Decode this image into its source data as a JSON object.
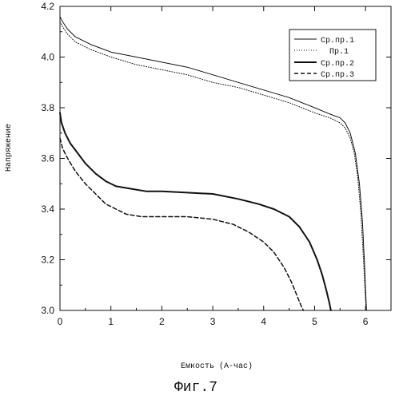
{
  "chart_data": {
    "type": "line",
    "title": "",
    "xlabel": "Емкость (А-час)",
    "ylabel": "Напряжение",
    "caption": "Фиг.7",
    "xlim": [
      0,
      6.5
    ],
    "ylim": [
      3.0,
      4.2
    ],
    "xticks": [
      0,
      1,
      2,
      3,
      4,
      5,
      6
    ],
    "yticks": [
      3.0,
      3.2,
      3.4,
      3.6,
      3.8,
      4.0,
      4.2
    ],
    "xtick_labels": [
      "0",
      "1",
      "2",
      "3",
      "4",
      "5",
      "6"
    ],
    "ytick_labels": [
      "3.0",
      "3.2",
      "3.4",
      "3.6",
      "3.8",
      "4.0",
      "4.2"
    ],
    "grid": false,
    "legend_position": "top-right",
    "series": [
      {
        "name": "Ср.пр.1",
        "style": "solid-thin",
        "color": "#111111",
        "x": [
          0.0,
          0.05,
          0.15,
          0.3,
          0.6,
          1.0,
          1.5,
          2.0,
          2.5,
          3.0,
          3.5,
          4.0,
          4.5,
          5.0,
          5.3,
          5.5,
          5.6,
          5.7,
          5.8,
          5.88,
          5.94,
          5.98,
          6.0,
          6.02
        ],
        "y": [
          4.16,
          4.14,
          4.11,
          4.08,
          4.05,
          4.02,
          4.0,
          3.98,
          3.96,
          3.93,
          3.9,
          3.87,
          3.84,
          3.8,
          3.775,
          3.76,
          3.74,
          3.7,
          3.62,
          3.5,
          3.35,
          3.18,
          3.08,
          3.0
        ]
      },
      {
        "name": "Пр.1",
        "style": "dotted",
        "color": "#111111",
        "x": [
          0.0,
          0.05,
          0.15,
          0.3,
          0.6,
          1.0,
          1.5,
          2.0,
          2.5,
          3.0,
          3.5,
          4.0,
          4.5,
          5.0,
          5.3,
          5.5,
          5.6,
          5.7,
          5.78,
          5.85,
          5.91,
          5.96,
          5.99,
          6.01
        ],
        "y": [
          4.14,
          4.12,
          4.09,
          4.06,
          4.03,
          4.0,
          3.97,
          3.95,
          3.93,
          3.9,
          3.88,
          3.85,
          3.82,
          3.78,
          3.76,
          3.74,
          3.72,
          3.68,
          3.62,
          3.52,
          3.38,
          3.2,
          3.08,
          3.0
        ]
      },
      {
        "name": "Ср.пр.2",
        "style": "solid-thick",
        "color": "#111111",
        "x": [
          0.0,
          0.03,
          0.1,
          0.2,
          0.35,
          0.5,
          0.7,
          0.9,
          1.1,
          1.4,
          1.7,
          2.0,
          2.5,
          3.0,
          3.5,
          3.9,
          4.2,
          4.5,
          4.7,
          4.9,
          5.05,
          5.15,
          5.23,
          5.29,
          5.32
        ],
        "y": [
          3.78,
          3.74,
          3.7,
          3.66,
          3.62,
          3.58,
          3.54,
          3.51,
          3.49,
          3.48,
          3.47,
          3.47,
          3.465,
          3.46,
          3.44,
          3.42,
          3.4,
          3.37,
          3.33,
          3.27,
          3.2,
          3.14,
          3.08,
          3.03,
          3.0
        ]
      },
      {
        "name": "Ср.пр.3",
        "style": "dashed",
        "color": "#111111",
        "x": [
          0.0,
          0.05,
          0.15,
          0.3,
          0.5,
          0.7,
          0.9,
          1.1,
          1.3,
          1.6,
          2.0,
          2.5,
          3.0,
          3.4,
          3.7,
          4.0,
          4.2,
          4.4,
          4.55,
          4.65,
          4.73,
          4.78
        ],
        "y": [
          3.68,
          3.64,
          3.6,
          3.55,
          3.5,
          3.46,
          3.42,
          3.4,
          3.38,
          3.37,
          3.37,
          3.37,
          3.36,
          3.34,
          3.31,
          3.27,
          3.23,
          3.17,
          3.11,
          3.06,
          3.02,
          3.0
        ]
      }
    ]
  }
}
